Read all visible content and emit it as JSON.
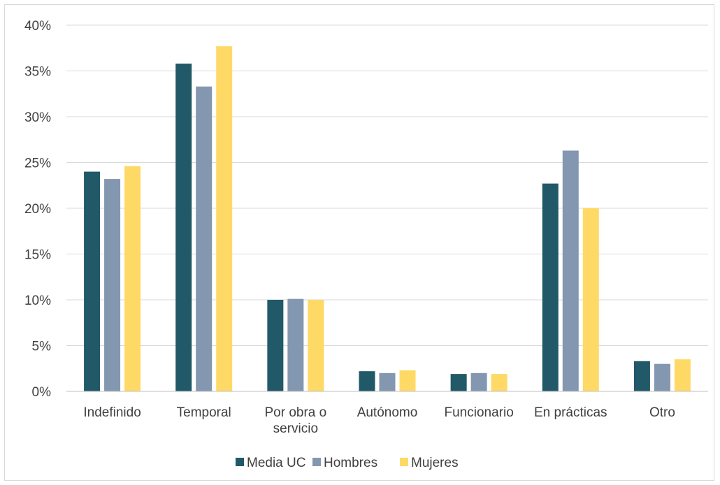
{
  "chart_data": {
    "type": "bar",
    "title": "",
    "xlabel": "",
    "ylabel": "",
    "categories": [
      [
        "Indefinido"
      ],
      [
        "Temporal"
      ],
      [
        "Por obra o",
        "servicio"
      ],
      [
        "Autónomo"
      ],
      [
        "Funcionario"
      ],
      [
        "En prácticas"
      ],
      [
        "Otro"
      ]
    ],
    "series": [
      {
        "name": "Media UC",
        "color": "#215968",
        "values": [
          24.0,
          35.8,
          10.0,
          2.2,
          1.9,
          22.7,
          3.3
        ]
      },
      {
        "name": "Hombres",
        "color": "#8497b0",
        "values": [
          23.2,
          33.3,
          10.1,
          2.0,
          2.0,
          26.3,
          3.0
        ]
      },
      {
        "name": "Mujeres",
        "color": "#ffd966",
        "values": [
          24.6,
          37.7,
          10.0,
          2.3,
          1.9,
          20.0,
          3.5
        ]
      }
    ],
    "ylim": [
      0,
      40
    ],
    "yticks": [
      "0%",
      "5%",
      "10%",
      "15%",
      "20%",
      "25%",
      "30%",
      "35%",
      "40%"
    ],
    "ytick_values": [
      0,
      5,
      10,
      15,
      20,
      25,
      30,
      35,
      40
    ],
    "grid": true,
    "legend_position": "bottom"
  }
}
